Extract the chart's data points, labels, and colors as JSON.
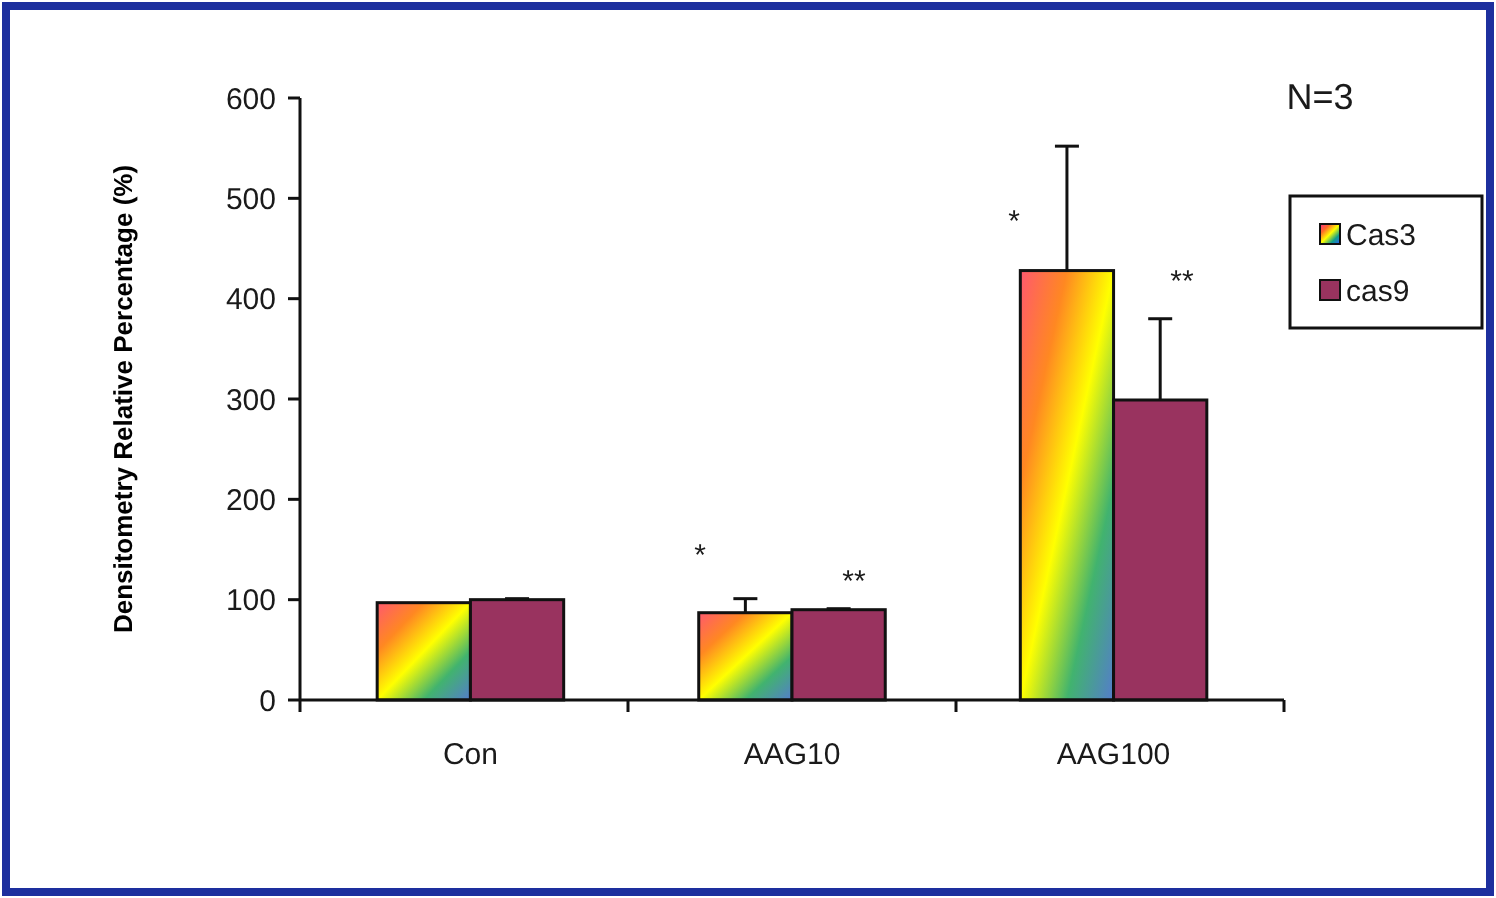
{
  "chart_data": {
    "type": "bar",
    "ylabel": "Densitometry Relative Percentage (%)",
    "categories": [
      "Con",
      "AAG10",
      "AAG100"
    ],
    "series": [
      {
        "name": "Cas3",
        "color": "#ffff00",
        "values": [
          97,
          87,
          428
        ],
        "errors": [
          null,
          14,
          124
        ]
      },
      {
        "name": "cas9",
        "color": "#99335f",
        "values": [
          100,
          90,
          299
        ],
        "errors": [
          1,
          1,
          81
        ]
      }
    ],
    "ylim": [
      0,
      600
    ],
    "yticks": [
      0,
      100,
      200,
      300,
      400,
      500,
      600
    ],
    "grid": false,
    "legend": "right",
    "annotations": [
      "N=3",
      "*",
      "**",
      "*",
      "**"
    ]
  }
}
